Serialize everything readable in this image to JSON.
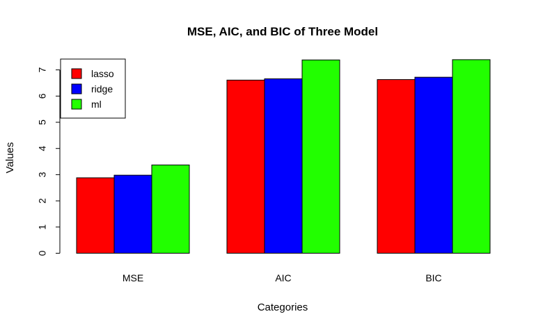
{
  "chart_data": {
    "type": "bar",
    "title": "MSE, AIC, and BIC of Three Model",
    "xlabel": "Categories",
    "ylabel": "Values",
    "categories": [
      "MSE",
      "AIC",
      "BIC"
    ],
    "series": [
      {
        "name": "lasso",
        "color": "#ff0000",
        "values": [
          2.88,
          6.61,
          6.63
        ]
      },
      {
        "name": "ridge",
        "color": "#0000ff",
        "values": [
          2.98,
          6.66,
          6.72
        ]
      },
      {
        "name": "ml",
        "color": "#22ff00",
        "values": [
          3.37,
          7.38,
          7.39
        ]
      }
    ],
    "ylim": [
      0,
      7.6
    ],
    "yticks": [
      0,
      1,
      2,
      3,
      4,
      5,
      6,
      7
    ],
    "legend_position": "top-left",
    "grid": false
  }
}
